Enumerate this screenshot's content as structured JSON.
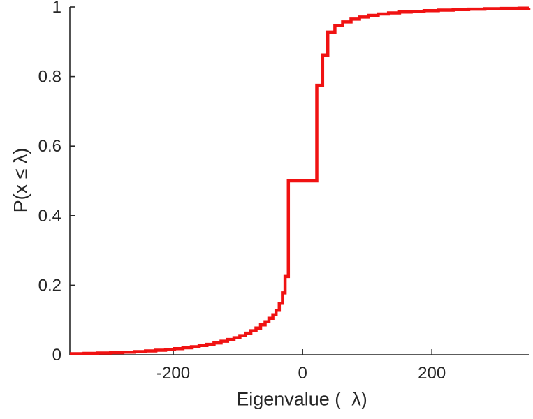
{
  "figure": {
    "background": "#ffffff"
  },
  "chart_data": {
    "type": "line",
    "subtype": "empirical-cdf-step",
    "title": "",
    "xlabel": "Eigenvalue (  λ)",
    "ylabel": "P(x ≤ λ)",
    "xlim": [
      -360,
      350
    ],
    "ylim": [
      0,
      1
    ],
    "grid": false,
    "legend": null,
    "line_color": "#f01212",
    "axis_color": "#262626",
    "line_width": 4.5,
    "xticks": [
      {
        "v": -200,
        "label": "-200"
      },
      {
        "v": 0,
        "label": "0"
      },
      {
        "v": 200,
        "label": "200"
      }
    ],
    "yticks": [
      {
        "v": 0,
        "label": "0"
      },
      {
        "v": 0.2,
        "label": "0.2"
      },
      {
        "v": 0.4,
        "label": "0.4"
      },
      {
        "v": 0.6,
        "label": "0.6"
      },
      {
        "v": 0.8,
        "label": "0.8"
      },
      {
        "v": 1,
        "label": "1"
      }
    ],
    "points": [
      [
        -360,
        0.003
      ],
      [
        -338,
        0.004
      ],
      [
        -317,
        0.005
      ],
      [
        -297,
        0.006
      ],
      [
        -278,
        0.0075
      ],
      [
        -260,
        0.009
      ],
      [
        -243,
        0.011
      ],
      [
        -227,
        0.013
      ],
      [
        -212,
        0.015
      ],
      [
        -198,
        0.0175
      ],
      [
        -185,
        0.02
      ],
      [
        -172,
        0.023
      ],
      [
        -160,
        0.0265
      ],
      [
        -148,
        0.03
      ],
      [
        -137,
        0.034
      ],
      [
        -126,
        0.039
      ],
      [
        -116,
        0.044
      ],
      [
        -106,
        0.049
      ],
      [
        -97,
        0.055
      ],
      [
        -88,
        0.062
      ],
      [
        -80,
        0.069
      ],
      [
        -72,
        0.077
      ],
      [
        -65,
        0.086
      ],
      [
        -58,
        0.095
      ],
      [
        -52,
        0.105
      ],
      [
        -46,
        0.115
      ],
      [
        -41,
        0.128
      ],
      [
        -36,
        0.148
      ],
      [
        -31,
        0.178
      ],
      [
        -27,
        0.225
      ],
      [
        -22,
        0.5
      ],
      [
        22,
        0.775
      ],
      [
        31,
        0.862
      ],
      [
        39,
        0.928
      ],
      [
        50,
        0.947
      ],
      [
        62,
        0.957
      ],
      [
        75,
        0.965
      ],
      [
        88,
        0.971
      ],
      [
        102,
        0.976
      ],
      [
        117,
        0.98
      ],
      [
        133,
        0.983
      ],
      [
        150,
        0.9855
      ],
      [
        168,
        0.9875
      ],
      [
        188,
        0.9895
      ],
      [
        210,
        0.991
      ],
      [
        233,
        0.9925
      ],
      [
        257,
        0.9938
      ],
      [
        282,
        0.9949
      ],
      [
        308,
        0.9958
      ],
      [
        335,
        0.9966
      ],
      [
        350,
        0.997
      ]
    ]
  }
}
